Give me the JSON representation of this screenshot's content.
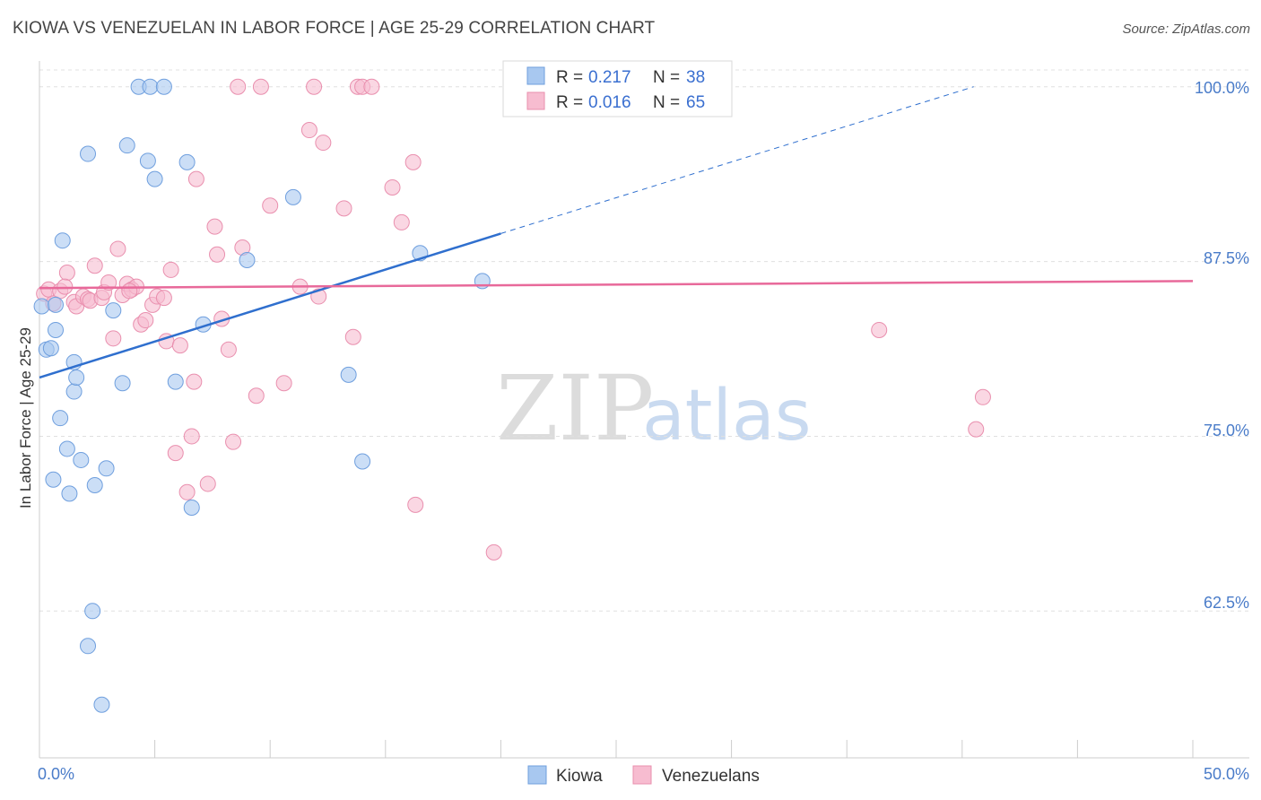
{
  "title": "KIOWA VS VENEZUELAN IN LABOR FORCE | AGE 25-29 CORRELATION CHART",
  "source": "Source: ZipAtlas.com",
  "watermark": {
    "zip": "ZIP",
    "atlas": "atlas"
  },
  "colors": {
    "kiowa_fill": "#a8c8f0",
    "kiowa_stroke": "#6f9fde",
    "kiowa_line": "#2f6fce",
    "venezuelan_fill": "#f7bcd0",
    "venezuelan_stroke": "#e98fae",
    "venezuelan_line": "#e8699a",
    "grid": "#e0e0e0",
    "tick_text": "#4a7cc9"
  },
  "legend": {
    "rows": [
      {
        "r_label": "R =",
        "r_value": "0.217",
        "n_label": "N =",
        "n_value": "38"
      },
      {
        "r_label": "R =",
        "r_value": "0.016",
        "n_label": "N =",
        "n_value": "65"
      }
    ]
  },
  "chart_data": {
    "type": "scatter",
    "title": "KIOWA VS VENEZUELAN IN LABOR FORCE | AGE 25-29 CORRELATION CHART",
    "xlabel": "",
    "ylabel": "In Labor Force | Age 25-29",
    "xlim": [
      0,
      50
    ],
    "ylim": [
      52,
      101.2
    ],
    "x_tick_labels": [
      "0.0%",
      "50.0%"
    ],
    "y_ticks": [
      62.5,
      75.0,
      87.5,
      100.0
    ],
    "y_tick_labels": [
      "62.5%",
      "75.0%",
      "87.5%",
      "100.0%"
    ],
    "grid": true,
    "legend_position": "top-center",
    "series": [
      {
        "name": "Kiowa",
        "R": 0.217,
        "N": 38,
        "trend": {
          "x0": 0,
          "y0": 79.2,
          "x1": 20,
          "y1": 89.5,
          "dash_to_x": 40.5,
          "dash_to_y": 100
        },
        "points": [
          [
            0.1,
            84.3
          ],
          [
            0.3,
            81.2
          ],
          [
            0.5,
            81.3
          ],
          [
            0.7,
            84.4
          ],
          [
            0.7,
            82.6
          ],
          [
            0.6,
            71.9
          ],
          [
            0.9,
            76.3
          ],
          [
            1.0,
            89.0
          ],
          [
            1.2,
            74.1
          ],
          [
            1.3,
            70.9
          ],
          [
            1.5,
            78.2
          ],
          [
            1.5,
            80.3
          ],
          [
            1.6,
            79.2
          ],
          [
            1.8,
            73.3
          ],
          [
            2.1,
            60.0
          ],
          [
            2.1,
            95.2
          ],
          [
            2.3,
            62.5
          ],
          [
            2.4,
            71.5
          ],
          [
            2.7,
            55.8
          ],
          [
            2.9,
            72.7
          ],
          [
            3.2,
            84.0
          ],
          [
            3.6,
            78.8
          ],
          [
            3.8,
            95.8
          ],
          [
            4.3,
            100.0
          ],
          [
            4.7,
            94.7
          ],
          [
            4.8,
            100.0
          ],
          [
            5.0,
            93.4
          ],
          [
            5.4,
            100.0
          ],
          [
            5.9,
            78.9
          ],
          [
            6.4,
            94.6
          ],
          [
            6.6,
            69.9
          ],
          [
            7.1,
            83.0
          ],
          [
            9.0,
            87.6
          ],
          [
            11.0,
            92.1
          ],
          [
            13.4,
            79.4
          ],
          [
            14.0,
            73.2
          ],
          [
            16.5,
            88.1
          ],
          [
            19.2,
            86.1
          ]
        ]
      },
      {
        "name": "Venezuelans",
        "R": 0.016,
        "N": 65,
        "trend": {
          "x0": 0,
          "y0": 85.6,
          "x1": 50,
          "y1": 86.1
        },
        "points": [
          [
            0.2,
            85.2
          ],
          [
            0.4,
            85.5
          ],
          [
            0.6,
            84.5
          ],
          [
            0.9,
            85.4
          ],
          [
            1.2,
            86.7
          ],
          [
            1.5,
            84.6
          ],
          [
            1.6,
            84.3
          ],
          [
            1.9,
            85.0
          ],
          [
            2.1,
            84.8
          ],
          [
            2.2,
            84.7
          ],
          [
            2.4,
            87.2
          ],
          [
            2.7,
            84.9
          ],
          [
            2.8,
            85.3
          ],
          [
            3.0,
            86.0
          ],
          [
            3.2,
            82.0
          ],
          [
            3.4,
            88.4
          ],
          [
            3.6,
            85.1
          ],
          [
            3.8,
            85.9
          ],
          [
            4.0,
            85.5
          ],
          [
            4.2,
            85.7
          ],
          [
            4.4,
            83.0
          ],
          [
            4.6,
            83.3
          ],
          [
            4.9,
            84.4
          ],
          [
            5.1,
            85.0
          ],
          [
            5.4,
            84.9
          ],
          [
            5.5,
            81.8
          ],
          [
            5.7,
            86.9
          ],
          [
            5.9,
            73.8
          ],
          [
            6.1,
            81.5
          ],
          [
            6.4,
            71.0
          ],
          [
            6.6,
            75.0
          ],
          [
            6.7,
            78.9
          ],
          [
            6.8,
            93.4
          ],
          [
            7.3,
            71.6
          ],
          [
            7.6,
            90.0
          ],
          [
            7.7,
            88.0
          ],
          [
            7.9,
            83.4
          ],
          [
            8.2,
            81.2
          ],
          [
            8.4,
            74.6
          ],
          [
            8.6,
            100.0
          ],
          [
            8.8,
            88.5
          ],
          [
            9.6,
            100.0
          ],
          [
            9.4,
            77.9
          ],
          [
            10.0,
            91.5
          ],
          [
            10.6,
            78.8
          ],
          [
            11.3,
            85.7
          ],
          [
            11.7,
            96.9
          ],
          [
            11.9,
            100.0
          ],
          [
            12.1,
            85.0
          ],
          [
            12.3,
            96.0
          ],
          [
            13.2,
            91.3
          ],
          [
            13.6,
            82.1
          ],
          [
            13.8,
            100.0
          ],
          [
            14.0,
            100.0
          ],
          [
            14.4,
            100.0
          ],
          [
            15.3,
            92.8
          ],
          [
            15.7,
            90.3
          ],
          [
            16.2,
            94.6
          ],
          [
            16.3,
            70.1
          ],
          [
            19.7,
            66.7
          ],
          [
            36.4,
            82.6
          ],
          [
            40.6,
            75.5
          ],
          [
            40.9,
            77.8
          ],
          [
            1.1,
            85.7
          ],
          [
            3.9,
            85.4
          ]
        ]
      }
    ]
  },
  "bottom_legend": {
    "items": [
      {
        "label": "Kiowa"
      },
      {
        "label": "Venezuelans"
      }
    ]
  }
}
